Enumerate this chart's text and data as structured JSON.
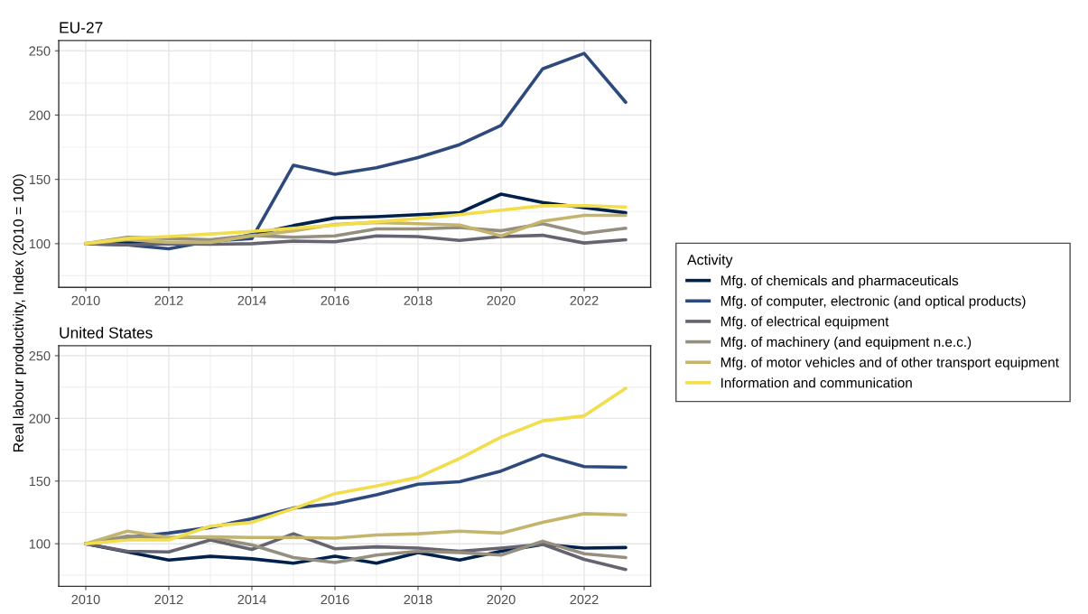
{
  "chart_data": [
    {
      "type": "line",
      "title": "EU-27",
      "ylabel": "Real labour productivity, Index (2010 = 100)",
      "legend_title": "Activity",
      "legend": "right",
      "grid": true,
      "x": [
        2010,
        2011,
        2012,
        2013,
        2014,
        2015,
        2016,
        2017,
        2018,
        2019,
        2020,
        2021,
        2022,
        2023
      ],
      "xlim": [
        2009.35,
        2023.6
      ],
      "xticks": [
        2010,
        2012,
        2014,
        2016,
        2018,
        2020,
        2022
      ],
      "ylim": [
        66,
        258
      ],
      "yticks": [
        100,
        150,
        200,
        250
      ],
      "series": [
        {
          "name": "Mfg. of chemicals and pharmaceuticals",
          "color": "#00204e",
          "values": [
            100,
            101,
            100,
            101,
            107,
            114,
            120,
            121,
            122.5,
            124,
            138.5,
            132,
            128,
            124
          ]
        },
        {
          "name": "Mfg. of computer, electronic (and optical products)",
          "color": "#2e4a7d",
          "values": [
            100,
            99,
            96,
            102,
            104,
            161,
            154,
            159,
            167,
            177,
            192,
            236,
            248,
            210
          ]
        },
        {
          "name": "Mfg. of electrical equipment",
          "color": "#666470",
          "values": [
            100,
            99,
            100,
            99.5,
            100,
            102,
            101.5,
            106,
            105.5,
            102.5,
            105.5,
            106.5,
            100.5,
            103
          ]
        },
        {
          "name": "Mfg. of machinery (and equipment n.e.c.)",
          "color": "#958f80",
          "values": [
            100,
            105,
            104,
            103,
            106.5,
            105,
            106,
            111.5,
            111.5,
            112.5,
            110,
            115.5,
            108,
            112
          ]
        },
        {
          "name": "Mfg. of motor vehicles and of other transport equipment",
          "color": "#c4b46c",
          "values": [
            100,
            103,
            101,
            101,
            106,
            110,
            115,
            116.5,
            115.5,
            114.5,
            106,
            117.5,
            122,
            122
          ]
        },
        {
          "name": "Information and communication",
          "color": "#f2dd4c",
          "values": [
            100,
            104,
            105.5,
            107.5,
            109.5,
            112,
            114.5,
            117,
            119.5,
            122.5,
            126,
            129.5,
            129.5,
            128.5
          ]
        }
      ]
    },
    {
      "type": "line",
      "title": "United States",
      "grid": true,
      "x": [
        2010,
        2011,
        2012,
        2013,
        2014,
        2015,
        2016,
        2017,
        2018,
        2019,
        2020,
        2021,
        2022,
        2023
      ],
      "xlim": [
        2009.35,
        2023.6
      ],
      "xticks": [
        2010,
        2012,
        2014,
        2016,
        2018,
        2020,
        2022
      ],
      "ylim": [
        66,
        258
      ],
      "yticks": [
        100,
        150,
        200,
        250
      ],
      "series": [
        {
          "color": "#00204e",
          "values": [
            100,
            93.5,
            87,
            90,
            88,
            84.5,
            90,
            84.5,
            93,
            87,
            94,
            99.5,
            96.5,
            97
          ]
        },
        {
          "color": "#2e4a7d",
          "values": [
            100,
            105,
            108.5,
            113,
            120,
            128.5,
            132,
            139,
            147.5,
            149.5,
            158,
            171,
            161.5,
            161
          ]
        },
        {
          "color": "#666470",
          "values": [
            100,
            94,
            93.5,
            103,
            95.5,
            108,
            96,
            97.5,
            96.5,
            94,
            96.5,
            99.5,
            87.5,
            79.5
          ]
        },
        {
          "color": "#958f80",
          "values": [
            100,
            106,
            105,
            105,
            99,
            89,
            85,
            91,
            94,
            93,
            91,
            102,
            92,
            89
          ]
        },
        {
          "color": "#c4b46c",
          "values": [
            100,
            110,
            105,
            105.5,
            105,
            105,
            104.5,
            107,
            108,
            110,
            108.5,
            117,
            124,
            123
          ]
        },
        {
          "color": "#f2dd4c",
          "values": [
            100,
            103,
            103,
            114,
            117,
            128,
            140,
            146,
            153,
            168,
            185,
            198,
            202,
            224
          ]
        }
      ]
    }
  ]
}
